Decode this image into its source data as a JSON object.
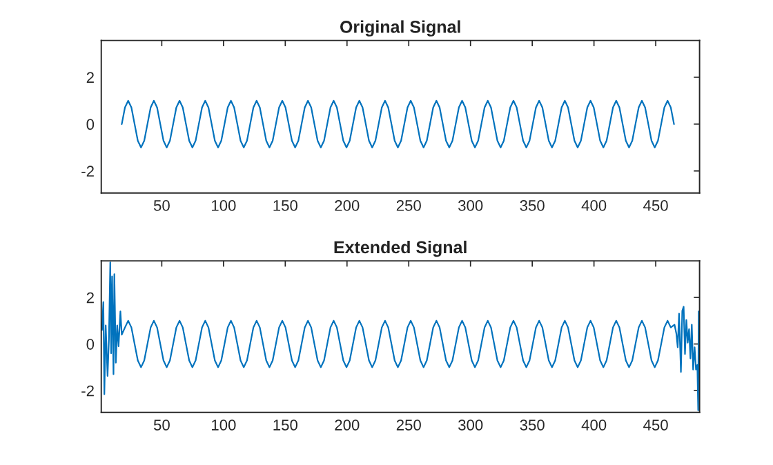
{
  "chart_data": [
    {
      "type": "line",
      "title": "Original Signal",
      "color": "#0072bd",
      "xlim": [
        1,
        485.5
      ],
      "ylim": [
        -2.94,
        3.57
      ],
      "xticks": [
        50,
        100,
        150,
        200,
        250,
        300,
        350,
        400,
        450
      ],
      "yticks": [
        -2,
        0,
        2
      ],
      "grid": false,
      "x": [
        17.6,
        20.2,
        22.8,
        25.4,
        28,
        30.6,
        33.2,
        35.8,
        38.4,
        41,
        43.6,
        46.2,
        48.8,
        51.4,
        54,
        56.6,
        59.2,
        61.8,
        64.4,
        67,
        69.6,
        72.2,
        74.8,
        77.4,
        80,
        82.6,
        85.2,
        87.8,
        90.4,
        93,
        95.6,
        98.2,
        100.8,
        103.4,
        106,
        108.6,
        111.2,
        113.8,
        116.4,
        119,
        121.6,
        124.2,
        126.8,
        129.4,
        132,
        134.6,
        137.2,
        139.8,
        142.4,
        145,
        147.6,
        150.2,
        152.8,
        155.4,
        158,
        160.6,
        163.2,
        165.8,
        168.4,
        171,
        173.6,
        176.2,
        178.8,
        181.4,
        184,
        186.6,
        189.2,
        191.8,
        194.4,
        197,
        199.6,
        202.2,
        204.8,
        207.4,
        210,
        212.6,
        215.2,
        217.8,
        220.4,
        223,
        225.6,
        228.2,
        230.8,
        233.4,
        236,
        238.6,
        241.2,
        243.8,
        246.4,
        249,
        251.6,
        254.2,
        256.8,
        259.4,
        262,
        264.6,
        267.2,
        269.8,
        272.4,
        275,
        277.6,
        280.2,
        282.8,
        285.4,
        288,
        290.6,
        293.2,
        295.8,
        298.4,
        301,
        303.6,
        306.2,
        308.8,
        311.4,
        314,
        316.6,
        319.2,
        321.8,
        324.4,
        327,
        329.6,
        332.2,
        334.8,
        337.4,
        340,
        342.6,
        345.2,
        347.8,
        350.4,
        353,
        355.6,
        358.2,
        360.8,
        363.4,
        366,
        368.6,
        371.2,
        373.8,
        376.4,
        379,
        381.6,
        384.2,
        386.8,
        389.4,
        392,
        394.6,
        397.2,
        399.8,
        402.4,
        405,
        407.6,
        410.2,
        412.8,
        415.4,
        418,
        420.6,
        423.2,
        425.8,
        428.4,
        431,
        433.6,
        436.2,
        438.8,
        441.4,
        444,
        446.6,
        449.2,
        451.8,
        454.4,
        457,
        459.6,
        462.2,
        464.8
      ],
      "values": [
        0,
        0.71,
        1,
        0.71,
        0,
        -0.71,
        -1,
        -0.71,
        0,
        0.71,
        1,
        0.71,
        0,
        -0.71,
        -1,
        -0.71,
        0,
        0.71,
        1,
        0.71,
        0,
        -0.71,
        -1,
        -0.71,
        0,
        0.71,
        1,
        0.71,
        0,
        -0.71,
        -1,
        -0.71,
        0,
        0.71,
        1,
        0.71,
        0,
        -0.71,
        -1,
        -0.71,
        0,
        0.71,
        1,
        0.71,
        0,
        -0.71,
        -1,
        -0.71,
        0,
        0.71,
        1,
        0.71,
        0,
        -0.71,
        -1,
        -0.71,
        0,
        0.71,
        1,
        0.71,
        0,
        -0.71,
        -1,
        -0.71,
        0,
        0.71,
        1,
        0.71,
        0,
        -0.71,
        -1,
        -0.71,
        0,
        0.71,
        1,
        0.71,
        0,
        -0.71,
        -1,
        -0.71,
        0,
        0.71,
        1,
        0.71,
        0,
        -0.71,
        -1,
        -0.71,
        0,
        0.71,
        1,
        0.71,
        0,
        -0.71,
        -1,
        -0.71,
        0,
        0.71,
        1,
        0.71,
        0,
        -0.71,
        -1,
        -0.71,
        0,
        0.71,
        1,
        0.71,
        0,
        -0.71,
        -1,
        -0.71,
        0,
        0.71,
        1,
        0.71,
        0,
        -0.71,
        -1,
        -0.71,
        0,
        0.71,
        1,
        0.71,
        0,
        -0.71,
        -1,
        -0.71,
        0,
        0.71,
        1,
        0.71,
        0,
        -0.71,
        -1,
        -0.71,
        0,
        0.71,
        1,
        0.71,
        0,
        -0.71,
        -1,
        -0.71,
        0,
        0.71,
        1,
        0.71,
        0,
        -0.71,
        -1,
        -0.71,
        0,
        0.71,
        1,
        0.71,
        0,
        -0.71,
        -1,
        -0.71,
        0,
        0.71,
        1,
        0.71,
        0,
        -0.71,
        -1,
        -0.71,
        0,
        0.71,
        1,
        0.71,
        0
      ]
    },
    {
      "type": "line",
      "title": "Extended Signal",
      "color": "#0072bd",
      "xlim": [
        1,
        485.5
      ],
      "ylim": [
        -2.94,
        3.57
      ],
      "xticks": [
        50,
        100,
        150,
        200,
        250,
        300,
        350,
        400,
        450
      ],
      "yticks": [
        -2,
        0,
        2
      ],
      "grid": false,
      "x": [
        1.6,
        2.7,
        3.5,
        4.6,
        6.1,
        7.2,
        8.3,
        9,
        9.8,
        10.9,
        11.6,
        12.8,
        13.9,
        15,
        16.5,
        17.6,
        20.2,
        22.8,
        25.4,
        28,
        30.6,
        33.2,
        35.8,
        38.4,
        41,
        43.6,
        46.2,
        48.8,
        51.4,
        54,
        56.6,
        59.2,
        61.8,
        64.4,
        67,
        69.6,
        72.2,
        74.8,
        77.4,
        80,
        82.6,
        85.2,
        87.8,
        90.4,
        93,
        95.6,
        98.2,
        100.8,
        103.4,
        106,
        108.6,
        111.2,
        113.8,
        116.4,
        119,
        121.6,
        124.2,
        126.8,
        129.4,
        132,
        134.6,
        137.2,
        139.8,
        142.4,
        145,
        147.6,
        150.2,
        152.8,
        155.4,
        158,
        160.6,
        163.2,
        165.8,
        168.4,
        171,
        173.6,
        176.2,
        178.8,
        181.4,
        184,
        186.6,
        189.2,
        191.8,
        194.4,
        197,
        199.6,
        202.2,
        204.8,
        207.4,
        210,
        212.6,
        215.2,
        217.8,
        220.4,
        223,
        225.6,
        228.2,
        230.8,
        233.4,
        236,
        238.6,
        241.2,
        243.8,
        246.4,
        249,
        251.6,
        254.2,
        256.8,
        259.4,
        262,
        264.6,
        267.2,
        269.8,
        272.4,
        275,
        277.6,
        280.2,
        282.8,
        285.4,
        288,
        290.6,
        293.2,
        295.8,
        298.4,
        301,
        303.6,
        306.2,
        308.8,
        311.4,
        314,
        316.6,
        319.2,
        321.8,
        324.4,
        327,
        329.6,
        332.2,
        334.8,
        337.4,
        340,
        342.6,
        345.2,
        347.8,
        350.4,
        353,
        355.6,
        358.2,
        360.8,
        363.4,
        366,
        368.6,
        371.2,
        373.8,
        376.4,
        379,
        381.6,
        384.2,
        386.8,
        389.4,
        392,
        394.6,
        397.2,
        399.8,
        402.4,
        405,
        407.6,
        410.2,
        412.8,
        415.4,
        418,
        420.6,
        423.2,
        425.8,
        428.4,
        431,
        433.6,
        436.2,
        438.8,
        441.4,
        444,
        446.6,
        449.2,
        451.8,
        454.4,
        457,
        459.6,
        462.2,
        465.2,
        466.7,
        467.8,
        468.9,
        470.4,
        471.5,
        472.6,
        473.7,
        474.8,
        475.9,
        477,
        478.1,
        479.2,
        480.3,
        481.5,
        482.6,
        483.7,
        484.4,
        484.8
      ],
      "values": [
        0.6,
        1.8,
        -2.16,
        0.8,
        -1.37,
        0.2,
        3.5,
        -0.4,
        2.9,
        -1.3,
        3,
        -0.8,
        0.8,
        -0.1,
        1.4,
        0.4,
        0.71,
        1,
        0.71,
        0,
        -0.71,
        -1,
        -0.71,
        0,
        0.71,
        1,
        0.71,
        0,
        -0.71,
        -1,
        -0.71,
        0,
        0.71,
        1,
        0.71,
        0,
        -0.71,
        -1,
        -0.71,
        0,
        0.71,
        1,
        0.71,
        0,
        -0.71,
        -1,
        -0.71,
        0,
        0.71,
        1,
        0.71,
        0,
        -0.71,
        -1,
        -0.71,
        0,
        0.71,
        1,
        0.71,
        0,
        -0.71,
        -1,
        -0.71,
        0,
        0.71,
        1,
        0.71,
        0,
        -0.71,
        -1,
        -0.71,
        0,
        0.71,
        1,
        0.71,
        0,
        -0.71,
        -1,
        -0.71,
        0,
        0.71,
        1,
        0.71,
        0,
        -0.71,
        -1,
        -0.71,
        0,
        0.71,
        1,
        0.71,
        0,
        -0.71,
        -1,
        -0.71,
        0,
        0.71,
        1,
        0.71,
        0,
        -0.71,
        -1,
        -0.71,
        0,
        0.71,
        1,
        0.71,
        0,
        -0.71,
        -1,
        -0.71,
        0,
        0.71,
        1,
        0.71,
        0,
        -0.71,
        -1,
        -0.71,
        0,
        0.71,
        1,
        0.71,
        0,
        -0.71,
        -1,
        -0.71,
        0,
        0.71,
        1,
        0.71,
        0,
        -0.71,
        -1,
        -0.71,
        0,
        0.71,
        1,
        0.71,
        0,
        -0.71,
        -1,
        -0.71,
        0,
        0.71,
        1,
        0.71,
        0,
        -0.71,
        -1,
        -0.71,
        0,
        0.71,
        1,
        0.71,
        0,
        -0.71,
        -1,
        -0.71,
        0,
        0.71,
        1,
        0.71,
        0,
        -0.71,
        -1,
        -0.71,
        0,
        0.71,
        1,
        0.71,
        0,
        -0.71,
        -1,
        -0.71,
        0,
        0.71,
        1,
        0.71,
        0,
        -0.71,
        -1,
        -0.71,
        0,
        0.71,
        1,
        0.71,
        0.83,
        0.45,
        -0.14,
        1.3,
        -1.2,
        1.42,
        1.6,
        -0.43,
        1.03,
        0.06,
        0.64,
        -0.62,
        0.83,
        -1.1,
        -0.14,
        -1.1,
        -0.9,
        -2.85,
        1.4
      ]
    }
  ]
}
